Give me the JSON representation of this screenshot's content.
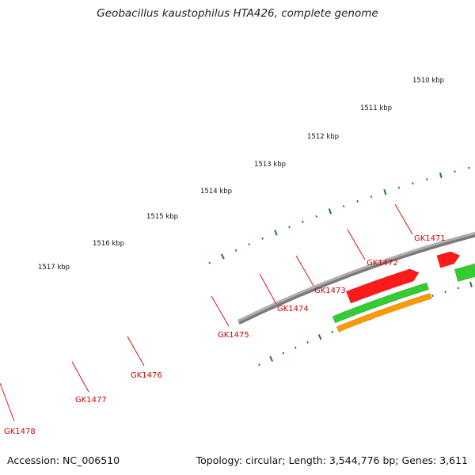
{
  "title": "Geobacillus kaustophilus HTA426, complete genome",
  "footer": {
    "accession": "Accession: NC_006510",
    "stats": "Topology: circular; Length: 3,544,776 bp; Genes: 3,611"
  },
  "colors": {
    "backbone": "#7a7a7a",
    "ticks": "#1f7a1f",
    "forward_gene": "#ff1a1a",
    "reverse_gene": "#33cc33",
    "special_gene": "#1a1aff",
    "orange_gene": "#ff9900",
    "label": "#d40000"
  },
  "kbp_labels": [
    "1510 kbp",
    "1511 kbp",
    "1512 kbp",
    "1513 kbp",
    "1514 kbp",
    "1515 kbp",
    "1516 kbp",
    "1517 kbp"
  ],
  "gene_labels": [
    "GK1471",
    "GK1472",
    "GK1473",
    "GK1474",
    "GK1475",
    "GK1476",
    "GK1477",
    "GK1478"
  ]
}
